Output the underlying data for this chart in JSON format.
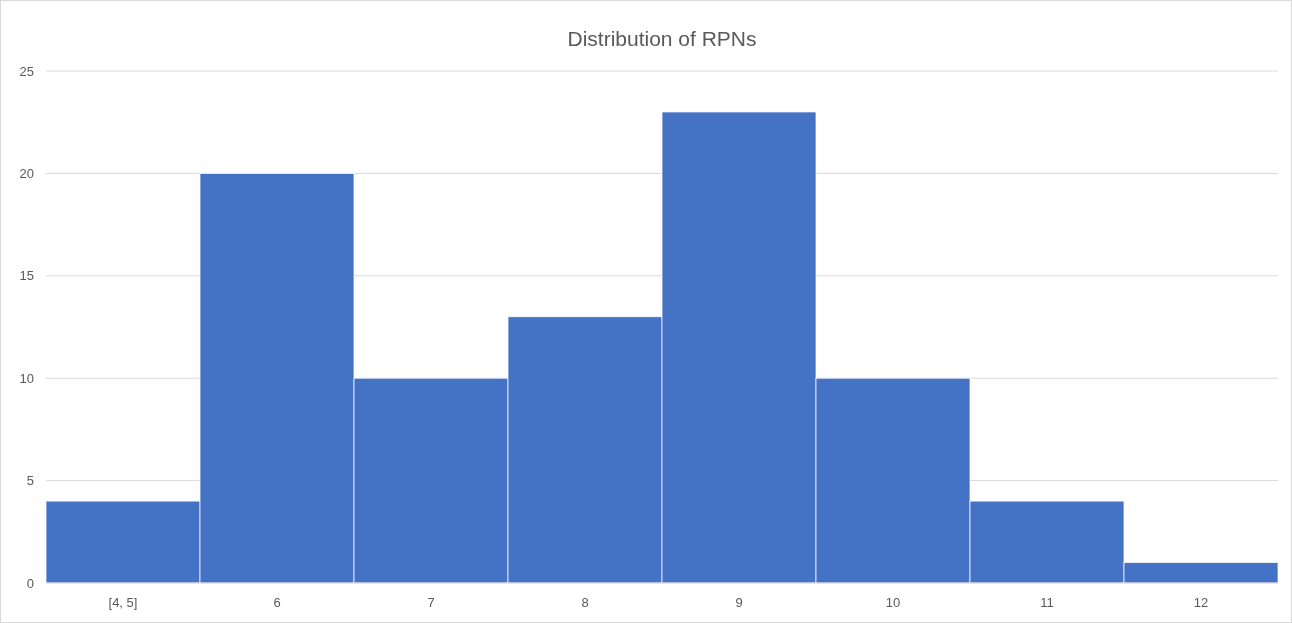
{
  "chart_data": {
    "type": "bar",
    "title": "Distribution of RPNs",
    "categories": [
      "[4, 5]",
      "6",
      "7",
      "8",
      "9",
      "10",
      "11",
      "12"
    ],
    "values": [
      4,
      20,
      10,
      13,
      23,
      10,
      4,
      1
    ],
    "color": "#4472c4",
    "ylim": [
      0,
      25
    ],
    "yticks": [
      0,
      5,
      10,
      15,
      20,
      25
    ],
    "grid": "y"
  }
}
